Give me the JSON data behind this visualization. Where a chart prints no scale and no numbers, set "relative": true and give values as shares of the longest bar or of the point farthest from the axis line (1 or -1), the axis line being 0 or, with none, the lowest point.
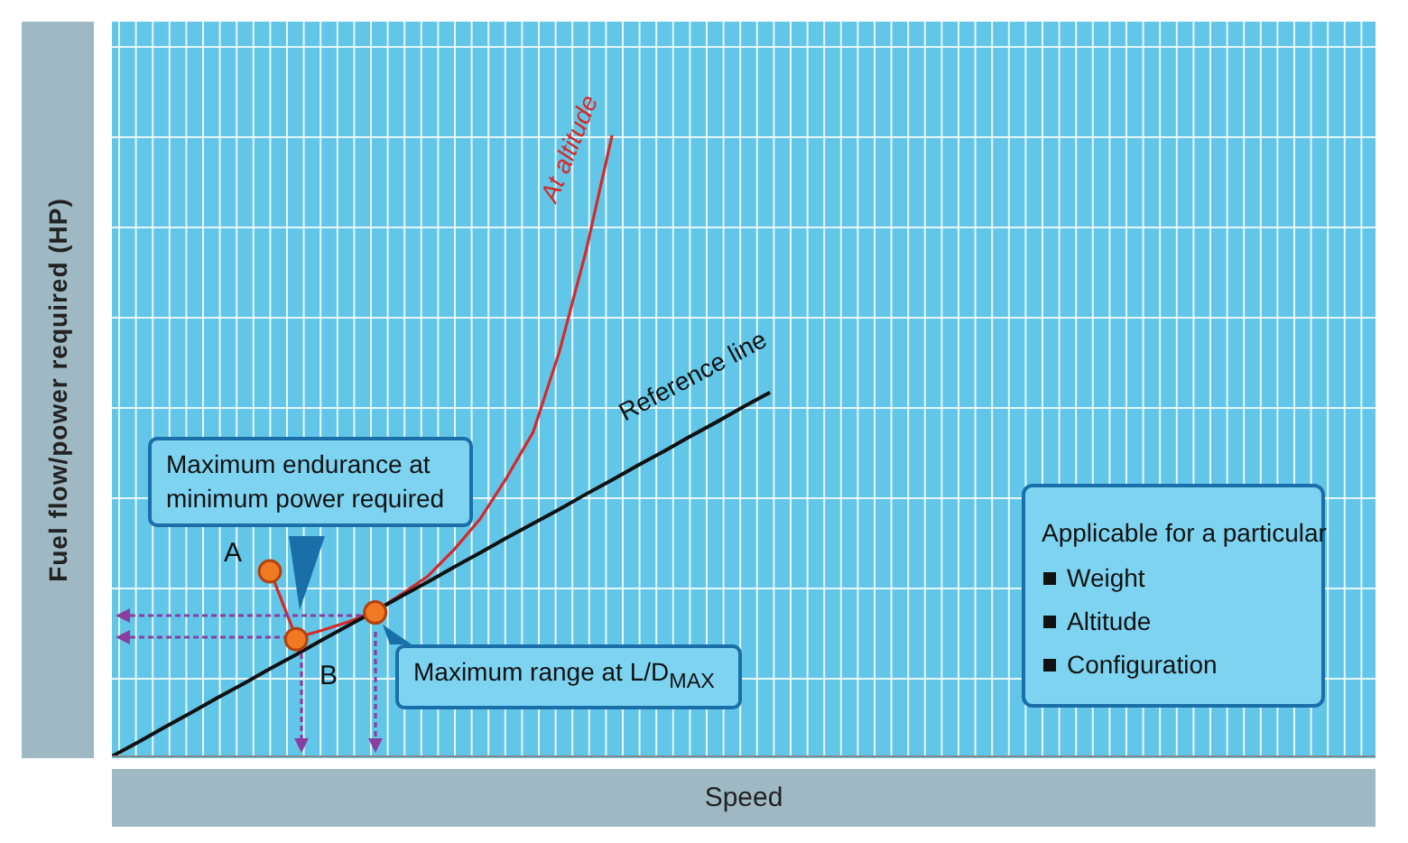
{
  "chart_data": {
    "type": "line",
    "relative": true,
    "xlabel": "Speed",
    "ylabel": "Fuel flow/power required (HP)",
    "grid": true,
    "marker": "none",
    "categories": [
      null,
      null,
      null,
      null,
      null,
      null,
      null,
      null,
      null,
      null,
      null,
      null,
      null,
      null,
      null,
      null,
      null,
      null,
      null,
      null,
      null,
      null,
      null,
      null,
      null,
      null,
      null,
      null,
      null,
      null,
      null,
      null,
      null,
      null,
      null,
      null,
      null,
      null,
      null,
      null,
      null,
      null,
      null,
      null,
      null,
      null,
      null,
      null,
      null
    ],
    "series": [
      {
        "name": "At altitude",
        "color": "#d42a2a",
        "values": [
          null,
          null,
          null,
          null,
          null,
          null,
          0.3,
          0.191,
          0.203,
          0.217,
          0.234,
          0.261,
          0.29,
          0.333,
          0.383,
          0.449,
          0.522,
          0.652,
          0.812,
          1,
          null,
          null,
          null,
          null,
          null,
          null,
          null,
          null,
          null,
          null,
          null,
          null,
          null,
          null,
          null,
          null,
          null,
          null,
          null,
          null,
          null,
          null,
          null,
          null,
          null,
          null,
          null,
          null,
          null
        ]
      },
      {
        "name": "Reference line",
        "color": "#111111",
        "values": [
          0,
          0.023,
          0.047,
          0.07,
          0.094,
          0.117,
          0.141,
          0.164,
          0.188,
          0.211,
          0.234,
          0.258,
          0.281,
          0.305,
          0.328,
          0.352,
          0.375,
          0.398,
          0.422,
          0.445,
          0.469,
          0.492,
          0.516,
          0.539,
          0.563,
          0.586,
          null,
          null,
          null,
          null,
          null,
          null,
          null,
          null,
          null,
          null,
          null,
          null,
          null,
          null,
          null,
          null,
          null,
          null,
          null,
          null,
          null,
          null,
          null
        ]
      }
    ],
    "annotations": [
      "Maximum endurance at minimum power required",
      "Maximum range at L/D$_{MAX}$",
      "A",
      "B",
      "Applicable for a particular",
      "Weight",
      "Altitude",
      "Configuration"
    ]
  }
}
